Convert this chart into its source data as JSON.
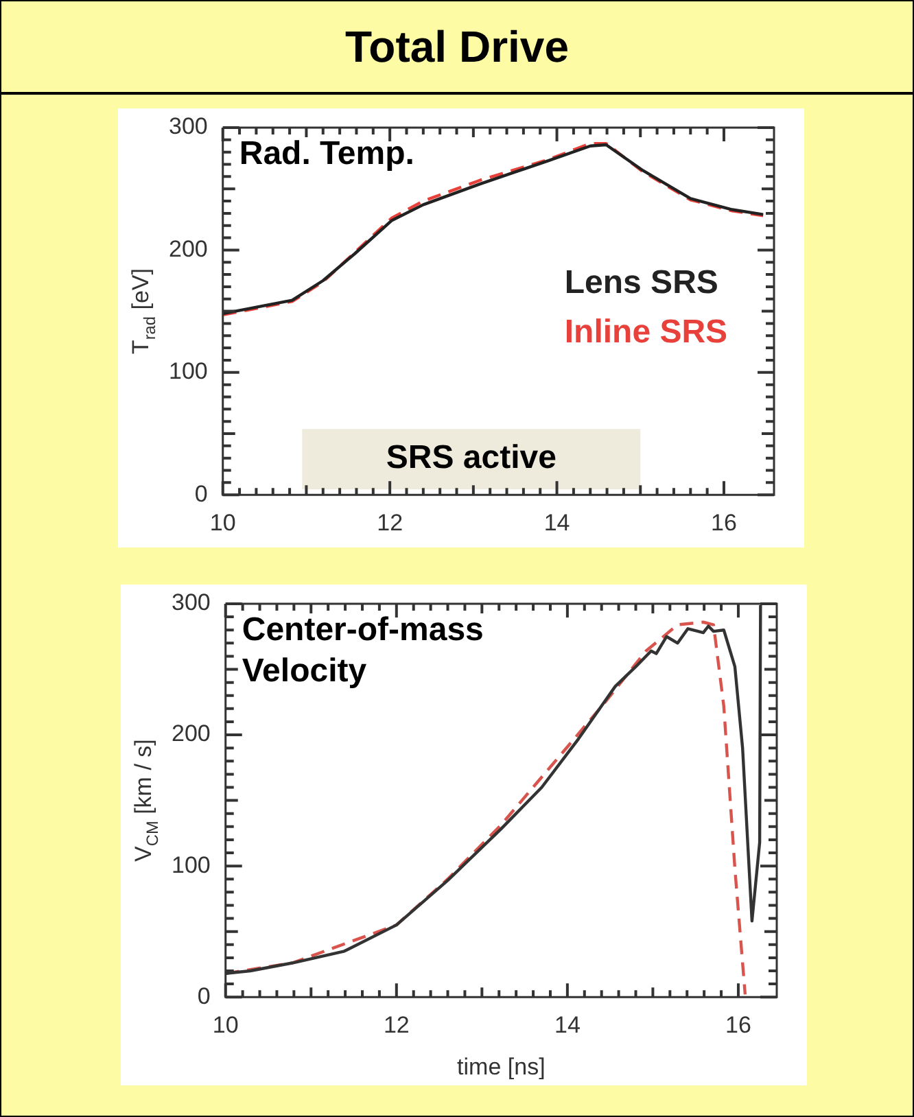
{
  "chart_data": [
    {
      "type": "line",
      "title": "Total Drive",
      "ylabel": "T$_{rad}$ [eV]",
      "xlim": [
        10,
        16.6
      ],
      "ylim": [
        0,
        300
      ],
      "xticks": [
        10,
        12,
        14,
        16
      ],
      "yticks": [
        0,
        100,
        200,
        300
      ],
      "grid": false,
      "marker": "none",
      "legend": "right",
      "annotations": [
        "Rad. Temp."
      ],
      "bands": [
        {
          "axis": "x",
          "from": 10.95,
          "to": 15,
          "label": "SRS active",
          "color": "#eeeadc"
        }
      ],
      "series": [
        {
          "name": "Lens SRS",
          "color": "#222222",
          "line_style": "solid",
          "x": [
            10,
            10.83,
            11.2,
            11.58,
            12.02,
            12.4,
            13.08,
            13.9,
            14.4,
            14.59,
            15.03,
            15.6,
            16.1,
            16.47
          ],
          "values": [
            148,
            159,
            175,
            197,
            224,
            237,
            254,
            273,
            285,
            286,
            265,
            242,
            233,
            229
          ]
        },
        {
          "name": "Inline SRS",
          "color": "#e8403a",
          "line_style": "dashed",
          "x": [
            10,
            10.83,
            11.2,
            11.58,
            12.02,
            12.4,
            13.08,
            13.9,
            14.4,
            14.59,
            15.03,
            15.6,
            16.1,
            16.47
          ],
          "values": [
            147,
            158,
            174,
            198,
            226,
            240,
            257,
            274,
            287,
            287,
            264,
            241,
            232,
            228
          ]
        }
      ]
    },
    {
      "type": "line",
      "xlabel": "time [ns]",
      "ylabel": "V$_{CM}$ [km / s]",
      "xlim": [
        10,
        16.45
      ],
      "ylim": [
        0,
        300
      ],
      "xticks": [
        10,
        12,
        14,
        16
      ],
      "yticks": [
        0,
        100,
        200,
        300
      ],
      "grid": false,
      "marker": "none",
      "annotations": [
        "Center-of-mass Velocity"
      ],
      "series": [
        {
          "color": "#333333",
          "line_style": "solid",
          "x": [
            10,
            10.29,
            10.78,
            11.39,
            12,
            12.6,
            13.22,
            13.7,
            14.13,
            14.56,
            14.8,
            14.98,
            15.04,
            15.16,
            15.29,
            15.41,
            15.59,
            15.65,
            15.71,
            15.83,
            15.96,
            16.05,
            16.16,
            16.25,
            16.26
          ],
          "values": [
            18,
            20,
            26,
            35,
            55,
            89,
            128,
            160,
            197,
            237,
            252,
            264,
            262,
            275,
            270,
            281,
            278,
            283,
            279,
            280,
            252,
            190,
            58,
            118,
            299
          ]
        },
        {
          "color": "#d9544c",
          "line_style": "dashed",
          "x": [
            10,
            10.78,
            12,
            12.6,
            13.22,
            13.82,
            14.43,
            14.92,
            15.29,
            15.59,
            15.71,
            15.83,
            15.96,
            16.08
          ],
          "values": [
            18,
            26,
            55,
            90,
            131,
            177,
            224,
            264,
            284,
            286,
            284,
            222,
            98,
            2
          ]
        }
      ]
    }
  ]
}
